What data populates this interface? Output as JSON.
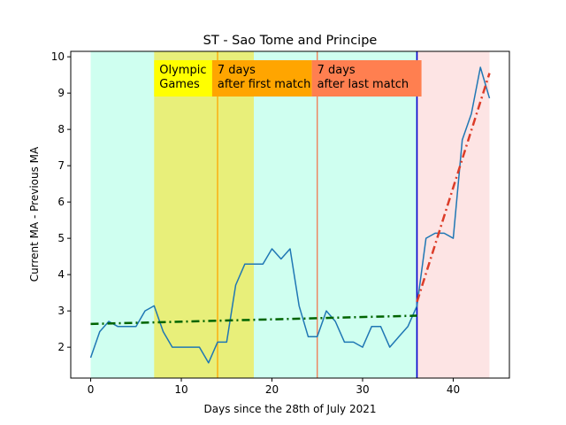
{
  "chart_data": {
    "type": "line",
    "title": "ST - Sao Tome and Principe",
    "xlabel": "Days since the 28th of July 2021",
    "ylabel": "Current MA - Previous MA",
    "xlim": [
      -2.2,
      46.2
    ],
    "ylim": [
      1.15,
      10.15
    ],
    "xticks": [
      0,
      10,
      20,
      30,
      40
    ],
    "yticks": [
      2,
      3,
      4,
      5,
      6,
      7,
      8,
      9,
      10
    ],
    "grid": false,
    "series": [
      {
        "name": "",
        "color": "#1f77b4",
        "style": "solid",
        "x": [
          0,
          1,
          2,
          3,
          4,
          5,
          6,
          7,
          8,
          9,
          10,
          11,
          12,
          13,
          14,
          15,
          16,
          17,
          18,
          19,
          20,
          21,
          22,
          23,
          24,
          25,
          26,
          27,
          28,
          29,
          30,
          31,
          32,
          33,
          34,
          35,
          36,
          37,
          38,
          39,
          40,
          41,
          42,
          43,
          44
        ],
        "y": [
          1.71,
          2.43,
          2.71,
          2.57,
          2.57,
          2.57,
          3.0,
          3.14,
          2.43,
          2.0,
          2.0,
          2.0,
          2.0,
          1.57,
          2.14,
          2.14,
          3.71,
          4.29,
          4.29,
          4.29,
          4.71,
          4.43,
          4.71,
          3.14,
          2.29,
          2.29,
          3.0,
          2.71,
          2.14,
          2.14,
          2.0,
          2.57,
          2.57,
          2.0,
          2.29,
          2.57,
          3.14,
          5.0,
          5.14,
          5.14,
          5.0,
          7.71,
          8.43,
          9.71,
          8.86
        ]
      },
      {
        "name": "",
        "color": "#006400",
        "style": "dashdot",
        "x": [
          0,
          36
        ],
        "y": [
          2.64,
          2.87
        ]
      },
      {
        "name": "",
        "color": "#dc3c28",
        "style": "dashdot",
        "x": [
          36,
          44
        ],
        "y": [
          3.25,
          9.55
        ]
      }
    ],
    "regions": [
      {
        "x0": 0,
        "x1": 36,
        "color": "#cffff0"
      },
      {
        "x0": 7,
        "x1": 18,
        "color": "#e8ef7a"
      },
      {
        "x0": 36,
        "x1": 44,
        "color": "#fde4e4"
      }
    ],
    "vlines": [
      {
        "x": 14,
        "color": "#ffa500"
      },
      {
        "x": 25,
        "color": "#f07850"
      },
      {
        "x": 36,
        "color": "#0000cc"
      }
    ],
    "annotations": [
      {
        "lines": [
          "Olympic",
          "Games"
        ],
        "x": 7,
        "x_end": 13.4,
        "bg": "#ffff00"
      },
      {
        "lines": [
          "7 days",
          "after first match"
        ],
        "x": 13.4,
        "x_end": 24.4,
        "bg": "#ffa500"
      },
      {
        "lines": [
          "7 days",
          "after last match"
        ],
        "x": 24.4,
        "x_end": 36.5,
        "bg": "#ff7f50"
      }
    ]
  }
}
